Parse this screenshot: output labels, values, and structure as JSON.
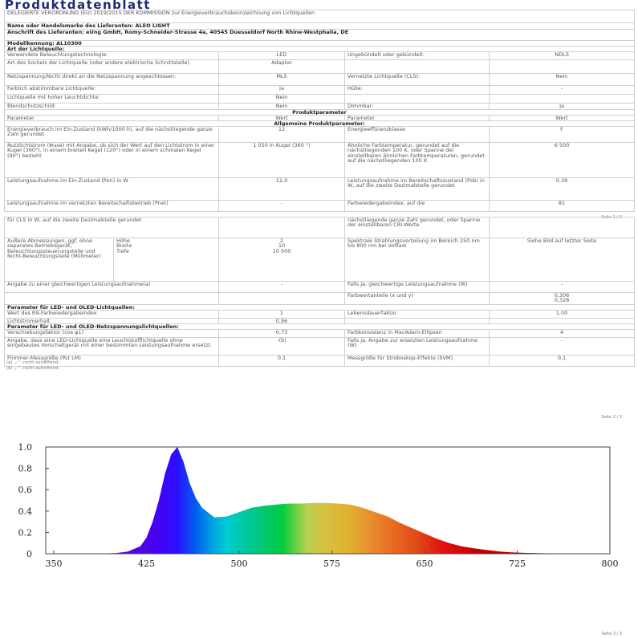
{
  "title": "Produktdatenblatt",
  "header": {
    "regulation": "DELEGIERTE VERORDNUNG (EU) 2019/2015 DER KOMMISSION zur Energieverbrauchskennzeichnung von Lichtquellen",
    "supplier_name": "Name oder Handelsmarke des Lieferanten: ALEO LIGHT",
    "supplier_address": "Anschrift des Lieferanten: eUng GmbH, Romy-Schneider-Strasse 4a, 40545 Duesseldorf North Rhine-Westphalia, DE",
    "model": "Modellkennung: AL10300",
    "type_heading": "Art der Lichtquelle:"
  },
  "type_rows": [
    {
      "p1": "Verwendete Beleuchtungstechnologie:",
      "v1": "LED",
      "p2": "Ungebündelt oder gebündelt:",
      "v2": "NDLS"
    },
    {
      "p1": "Art des Sockels der Lichtquelle (oder andere elektrische Schnittstelle)",
      "v1": "Adapter",
      "p2": "",
      "v2": ""
    },
    {
      "p1": "Netzspannung/Nicht direkt an die Netzspannung angeschlossen:",
      "v1": "MLS",
      "p2": "Vernetzte Lichtquelle (CLS):",
      "v2": "Nein"
    },
    {
      "p1": "Farblich abstimmbare Lichtquelle:",
      "v1": "Ja",
      "p2": "Hülle:",
      "v2": "-"
    },
    {
      "p1": "Lichtquelle mit hoher Leuchtdichte:",
      "v1": "Nein",
      "p2": "",
      "v2": ""
    },
    {
      "p1": "Blendschutzschild:",
      "v1": "Nein",
      "p2": "Dimmbar:",
      "v2": "Ja"
    }
  ],
  "params": {
    "heading": "Produktparameter",
    "col_param": "Parameter",
    "col_value": "Wert",
    "general_heading": "Allgemeine Produktparameter:",
    "rows": [
      {
        "p1": "Energieverbrauch im Ein-Zustand (kWh/1000 h), auf die nächstliegende ganze Zahl gerundet",
        "v1": "12",
        "p2": "Energieeffizienzklasse",
        "v2": "F"
      },
      {
        "p1": "Nutzlichtstrom (Φuse) mit Angabe, ob sich der Wert auf den Lichtstrom in einer Kugel (360°), in einem breiten Kegel (120°) oder in einem schmalen Kegel (90°) bezieht",
        "v1": "1 050 in Kugel (360 °)",
        "p2": "Ähnliche Farbtemperatur, gerundet auf die nächstliegenden 100 K, oder Spanne der einstellbaren ähnlichen Farbtemperaturen, gerundet auf die nächstliegenden 100 K",
        "v2": "6 500"
      },
      {
        "p1": "Leistungsaufnahme im Ein-Zustand (Pon) in W",
        "v1": "12,0",
        "p2": "Leistungsaufnahme im Bereitschaftszustand (Psb) in W, auf die zweite Dezimalstelle gerundet",
        "v2": "0,39"
      },
      {
        "p1": "Leistungsaufnahme im vernetzten Bereitschaftsbetrieb (Pnet)",
        "v1": "-",
        "p2": "Farbwiedergabeindex, auf die",
        "v2": "81"
      }
    ]
  },
  "page2": {
    "cont_p1": "für CLS in W, auf die zweite Dezimalstelle gerundet",
    "cont_p2": "nächstliegende ganze Zahl gerundet, oder Spanne der einstellbaren CRI-Werte",
    "dims_label": "Äußere Abmessungen, ggf. ohne separates Betriebsgerät, Beleuchtungssteuerungsteile und Nicht-Beleuchtungsteile (Millimeter)",
    "dims": [
      {
        "label": "Höhe",
        "value": "2"
      },
      {
        "label": "Breite",
        "value": "10"
      },
      {
        "label": "Tiefe",
        "value": "10 000"
      }
    ],
    "spectral_p": "Spektrale Strahlungsverteilung im Bereich 250 nm bis 800 nm bei Volllast",
    "spectral_v": "Siehe Bild auf letzter Seite",
    "equiv_p1": "Angabe zu einer gleichwertigen Leistungsaufnahme(a)",
    "equiv_v1": "-",
    "equiv_p2": "Falls ja, gleichwertige Leistungsaufnahme (W)",
    "equiv_v2": "-",
    "chroma_p": "Farbwertanteile (x und y)",
    "chroma_v": "0,306 0,328",
    "led_heading": "Parameter für LED- und OLED-Lichtquellen:",
    "r9_p": "Wert des R9-Farbwiedergabeindex",
    "r9_v": "1",
    "life_p": "Lebensdauerfaktor",
    "life_v": "1,00",
    "flux_p": "Lichtstromerhalt",
    "flux_v": "0,96",
    "mains_heading": "Parameter für LED- und OLED-Netzspannungslichtquellen:",
    "cos_p": "Verschiebungsfaktor (cos φ1)",
    "cos_v": "0,73",
    "macadam_p": "Farbkonsistenz in MacAdam-Ellipsen",
    "macadam_v": "4",
    "replace_p": "Angabe, dass eine LED-Lichtquelle eine Leuchtstofflichtquelle ohne eingebautes Vorschaltgerät mit einer bestimmten Leistungsaufnahme ersetzt.",
    "replace_v": "-(b)",
    "replace_p2": "Falls ja, Angabe zur ersetzten Leistungsaufnahme (W)",
    "replace_v2": "-",
    "flicker_p": "Flimmer-Messgröße (Pst LM)",
    "flicker_v": "0,1",
    "svm_p": "Messgröße für Stroboskop-Effekte (SVM)",
    "svm_v": "0,1",
    "footnote_a": "(a) „-“: nicht zutreffend;",
    "footnote_b": "(b) „-“: nicht zutreffend;"
  },
  "footers": [
    "Seite 1 / 3",
    "Seite 2 / 3",
    "Seite 3 / 3"
  ],
  "chart_data": {
    "type": "area",
    "title": "",
    "xlabel": "",
    "ylabel": "",
    "xlim": [
      350,
      800
    ],
    "ylim": [
      0,
      1.0
    ],
    "x_ticks": [
      "350",
      "425",
      "500",
      "575",
      "650",
      "725",
      "800"
    ],
    "y_ticks": [
      "1.0",
      "0.8",
      "0.6",
      "0.4",
      "0.2",
      "0"
    ],
    "grid": false,
    "fill": "visible-spectrum gradient",
    "x": [
      380,
      400,
      410,
      420,
      425,
      430,
      435,
      440,
      445,
      450,
      455,
      460,
      465,
      470,
      480,
      490,
      500,
      510,
      520,
      530,
      540,
      550,
      560,
      570,
      580,
      590,
      600,
      610,
      620,
      630,
      640,
      650,
      660,
      670,
      680,
      690,
      700,
      710,
      720,
      730,
      740,
      760,
      780
    ],
    "y": [
      0,
      0.005,
      0.02,
      0.07,
      0.15,
      0.3,
      0.5,
      0.75,
      0.93,
      1.0,
      0.86,
      0.66,
      0.52,
      0.43,
      0.34,
      0.35,
      0.39,
      0.43,
      0.45,
      0.46,
      0.47,
      0.47,
      0.475,
      0.475,
      0.47,
      0.46,
      0.43,
      0.39,
      0.35,
      0.29,
      0.24,
      0.19,
      0.14,
      0.1,
      0.07,
      0.05,
      0.035,
      0.022,
      0.013,
      0.008,
      0.005,
      0.002,
      0
    ]
  }
}
